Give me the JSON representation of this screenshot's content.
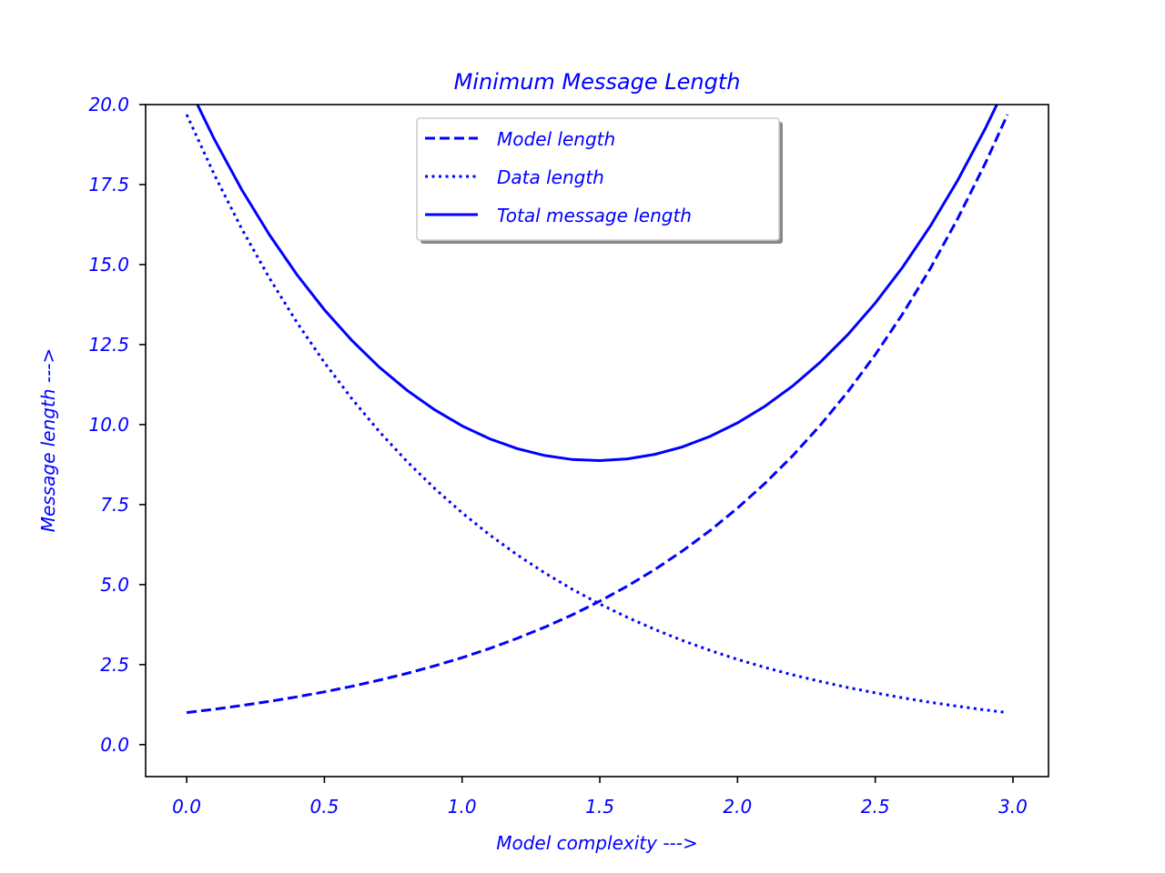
{
  "chart_data": {
    "type": "line",
    "title": "Minimum Message Length",
    "xlabel": "Model complexity --->",
    "ylabel": "Message length --->",
    "xlim": [
      -0.149,
      3.129
    ],
    "ylim": [
      -1,
      20
    ],
    "grid": false,
    "legend_placement": "upper center",
    "legend_shadow": true,
    "color": "#0000ff",
    "x_ticks": [
      "0.0",
      "0.5",
      "1.0",
      "1.5",
      "2.0",
      "2.5",
      "3.0"
    ],
    "y_ticks": [
      "0.0",
      "2.5",
      "5.0",
      "7.5",
      "10.0",
      "12.5",
      "15.0",
      "17.5",
      "20.0"
    ],
    "x": [
      0,
      0.1,
      0.2,
      0.3,
      0.4,
      0.5,
      0.6,
      0.7,
      0.8,
      0.9,
      1.0,
      1.1,
      1.2,
      1.3,
      1.4,
      1.5,
      1.6,
      1.7,
      1.8,
      1.9,
      2.0,
      2.1,
      2.2,
      2.3,
      2.4,
      2.5,
      2.6,
      2.7,
      2.8,
      2.9,
      2.98
    ],
    "series": [
      {
        "name": "Model length",
        "style": "dashed",
        "values": [
          1.0,
          1.105,
          1.221,
          1.35,
          1.492,
          1.649,
          1.822,
          2.014,
          2.226,
          2.46,
          2.718,
          3.004,
          3.32,
          3.669,
          4.055,
          4.482,
          4.953,
          5.474,
          6.05,
          6.686,
          7.389,
          8.166,
          9.025,
          9.974,
          11.023,
          12.182,
          13.464,
          14.88,
          16.445,
          18.174,
          19.688
        ]
      },
      {
        "name": "Data length",
        "style": "dotted",
        "values": [
          19.688,
          17.814,
          16.119,
          14.585,
          13.197,
          11.941,
          10.805,
          9.777,
          8.846,
          8.004,
          7.243,
          6.554,
          5.93,
          5.366,
          4.855,
          4.393,
          3.975,
          3.597,
          3.254,
          2.945,
          2.664,
          2.411,
          2.181,
          1.974,
          1.786,
          1.616,
          1.462,
          1.323,
          1.197,
          1.083,
          1.0
        ]
      },
      {
        "name": "Total message length",
        "style": "solid",
        "values": [
          20.688,
          18.919,
          17.34,
          15.935,
          14.689,
          13.59,
          12.627,
          11.791,
          11.072,
          10.464,
          9.961,
          9.558,
          9.25,
          9.035,
          8.91,
          8.875,
          8.928,
          9.071,
          9.304,
          9.631,
          10.053,
          10.577,
          11.206,
          11.948,
          12.809,
          13.798,
          14.926,
          16.203,
          17.642,
          19.257,
          20.688
        ]
      }
    ]
  }
}
